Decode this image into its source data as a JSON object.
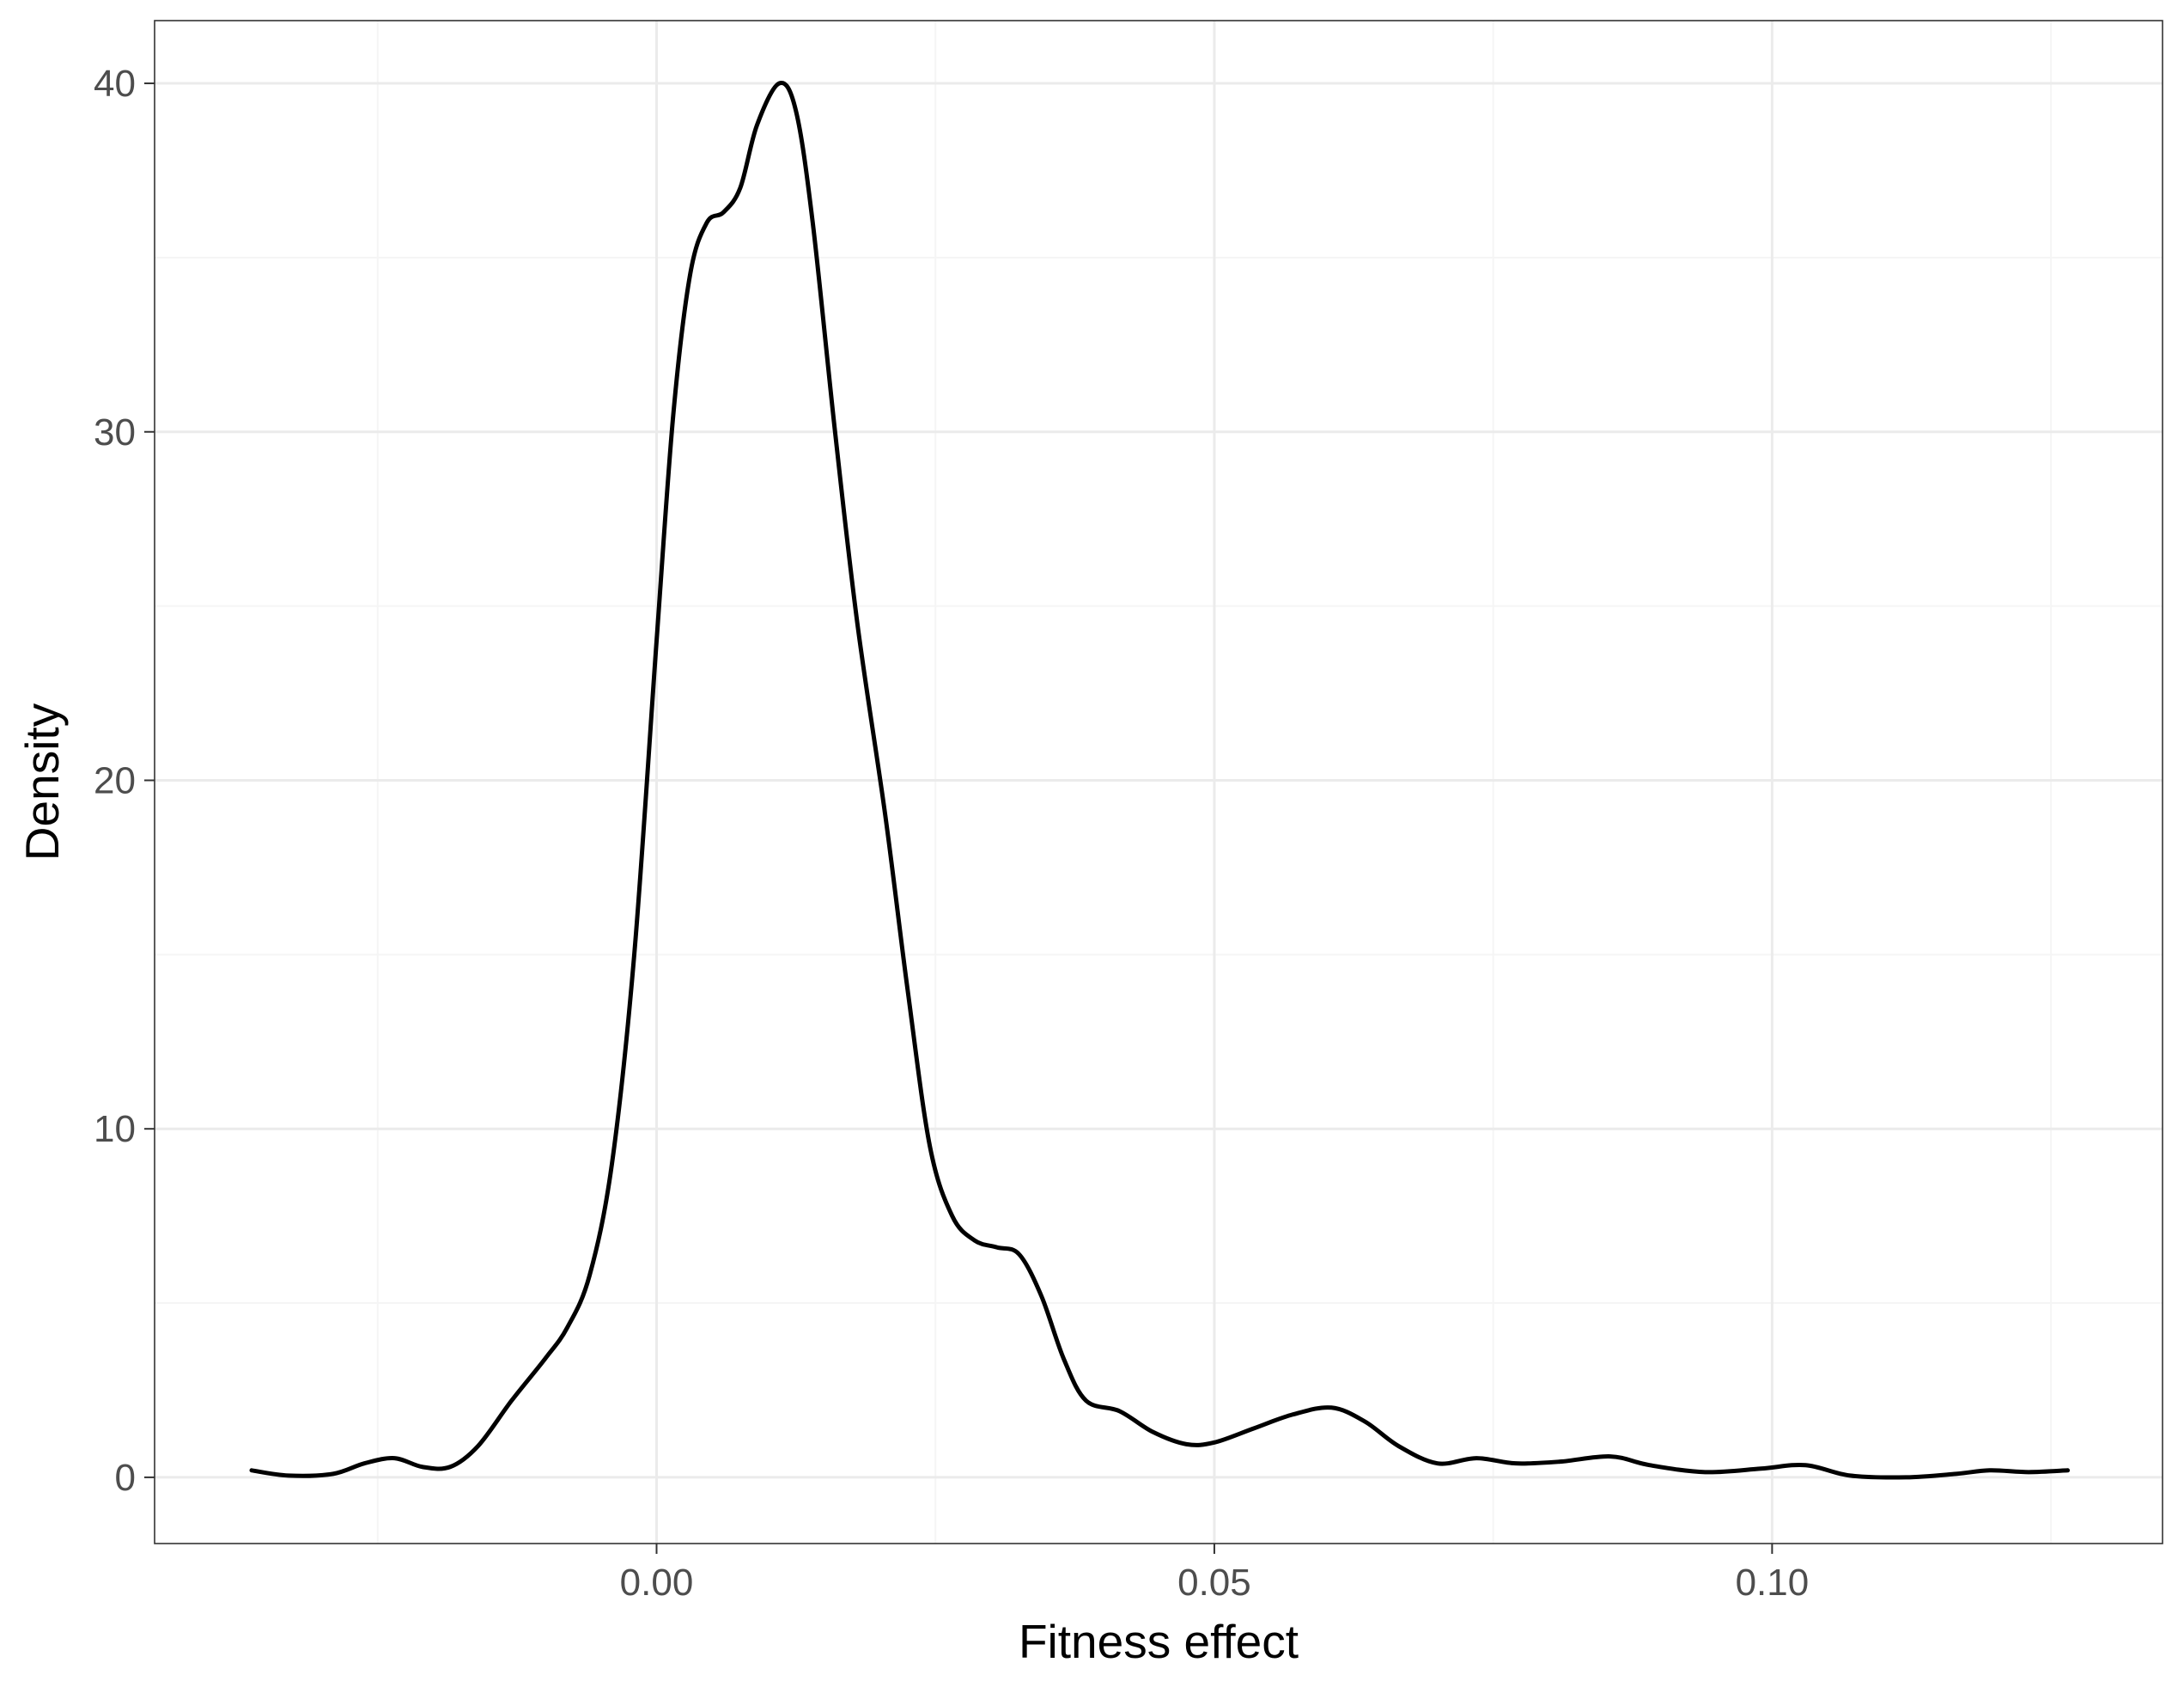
{
  "chart_data": {
    "type": "line",
    "title": "",
    "xlabel": "Fitness effect",
    "ylabel": "Density",
    "xlim": [
      -0.045,
      0.135
    ],
    "ylim": [
      -1.9,
      41.8
    ],
    "x_ticks": [
      0.0,
      0.05,
      0.1
    ],
    "x_tick_labels": [
      "0.00",
      "0.05",
      "0.10"
    ],
    "y_ticks": [
      0,
      10,
      20,
      30,
      40
    ],
    "y_tick_labels": [
      "0",
      "10",
      "20",
      "30",
      "40"
    ],
    "grid": true,
    "legend": "none",
    "series": [
      {
        "points": [
          [
            -0.0363,
            0.2
          ],
          [
            -0.033,
            0.05
          ],
          [
            -0.029,
            0.1
          ],
          [
            -0.0262,
            0.4
          ],
          [
            -0.0235,
            0.55
          ],
          [
            -0.021,
            0.3
          ],
          [
            -0.0185,
            0.3
          ],
          [
            -0.016,
            0.9
          ],
          [
            -0.013,
            2.2
          ],
          [
            -0.01,
            3.4
          ],
          [
            -0.008,
            4.3
          ],
          [
            -0.006,
            5.8
          ],
          [
            -0.004,
            9.0
          ],
          [
            -0.002,
            15.0
          ],
          [
            0.0,
            24.0
          ],
          [
            0.0015,
            30.5
          ],
          [
            0.003,
            34.5
          ],
          [
            0.0045,
            36.0
          ],
          [
            0.006,
            36.3
          ],
          [
            0.0075,
            37.0
          ],
          [
            0.009,
            38.8
          ],
          [
            0.011,
            40.0
          ],
          [
            0.0125,
            39.2
          ],
          [
            0.014,
            36.0
          ],
          [
            0.016,
            30.0
          ],
          [
            0.018,
            24.5
          ],
          [
            0.0205,
            19.0
          ],
          [
            0.0225,
            14.0
          ],
          [
            0.0245,
            9.5
          ],
          [
            0.0265,
            7.5
          ],
          [
            0.0285,
            6.8
          ],
          [
            0.0305,
            6.6
          ],
          [
            0.0325,
            6.4
          ],
          [
            0.0345,
            5.2
          ],
          [
            0.0365,
            3.4
          ],
          [
            0.0385,
            2.2
          ],
          [
            0.0415,
            1.9
          ],
          [
            0.0445,
            1.3
          ],
          [
            0.0475,
            0.95
          ],
          [
            0.05,
            1.0
          ],
          [
            0.0535,
            1.4
          ],
          [
            0.057,
            1.8
          ],
          [
            0.0605,
            2.0
          ],
          [
            0.0635,
            1.6
          ],
          [
            0.0665,
            0.9
          ],
          [
            0.07,
            0.4
          ],
          [
            0.0735,
            0.55
          ],
          [
            0.077,
            0.4
          ],
          [
            0.081,
            0.45
          ],
          [
            0.0855,
            0.6
          ],
          [
            0.089,
            0.35
          ],
          [
            0.094,
            0.15
          ],
          [
            0.099,
            0.25
          ],
          [
            0.103,
            0.35
          ],
          [
            0.107,
            0.05
          ],
          [
            0.112,
            0.0
          ],
          [
            0.1165,
            0.1
          ],
          [
            0.1195,
            0.2
          ],
          [
            0.123,
            0.15
          ],
          [
            0.1265,
            0.2
          ]
        ]
      }
    ]
  },
  "colors": {
    "line": "#000000",
    "grid_major": "#ebebeb",
    "grid_minor": "#f5f5f5",
    "panel_border": "#333333",
    "tick_text": "#4d4d4d",
    "axis_title": "#000000"
  }
}
